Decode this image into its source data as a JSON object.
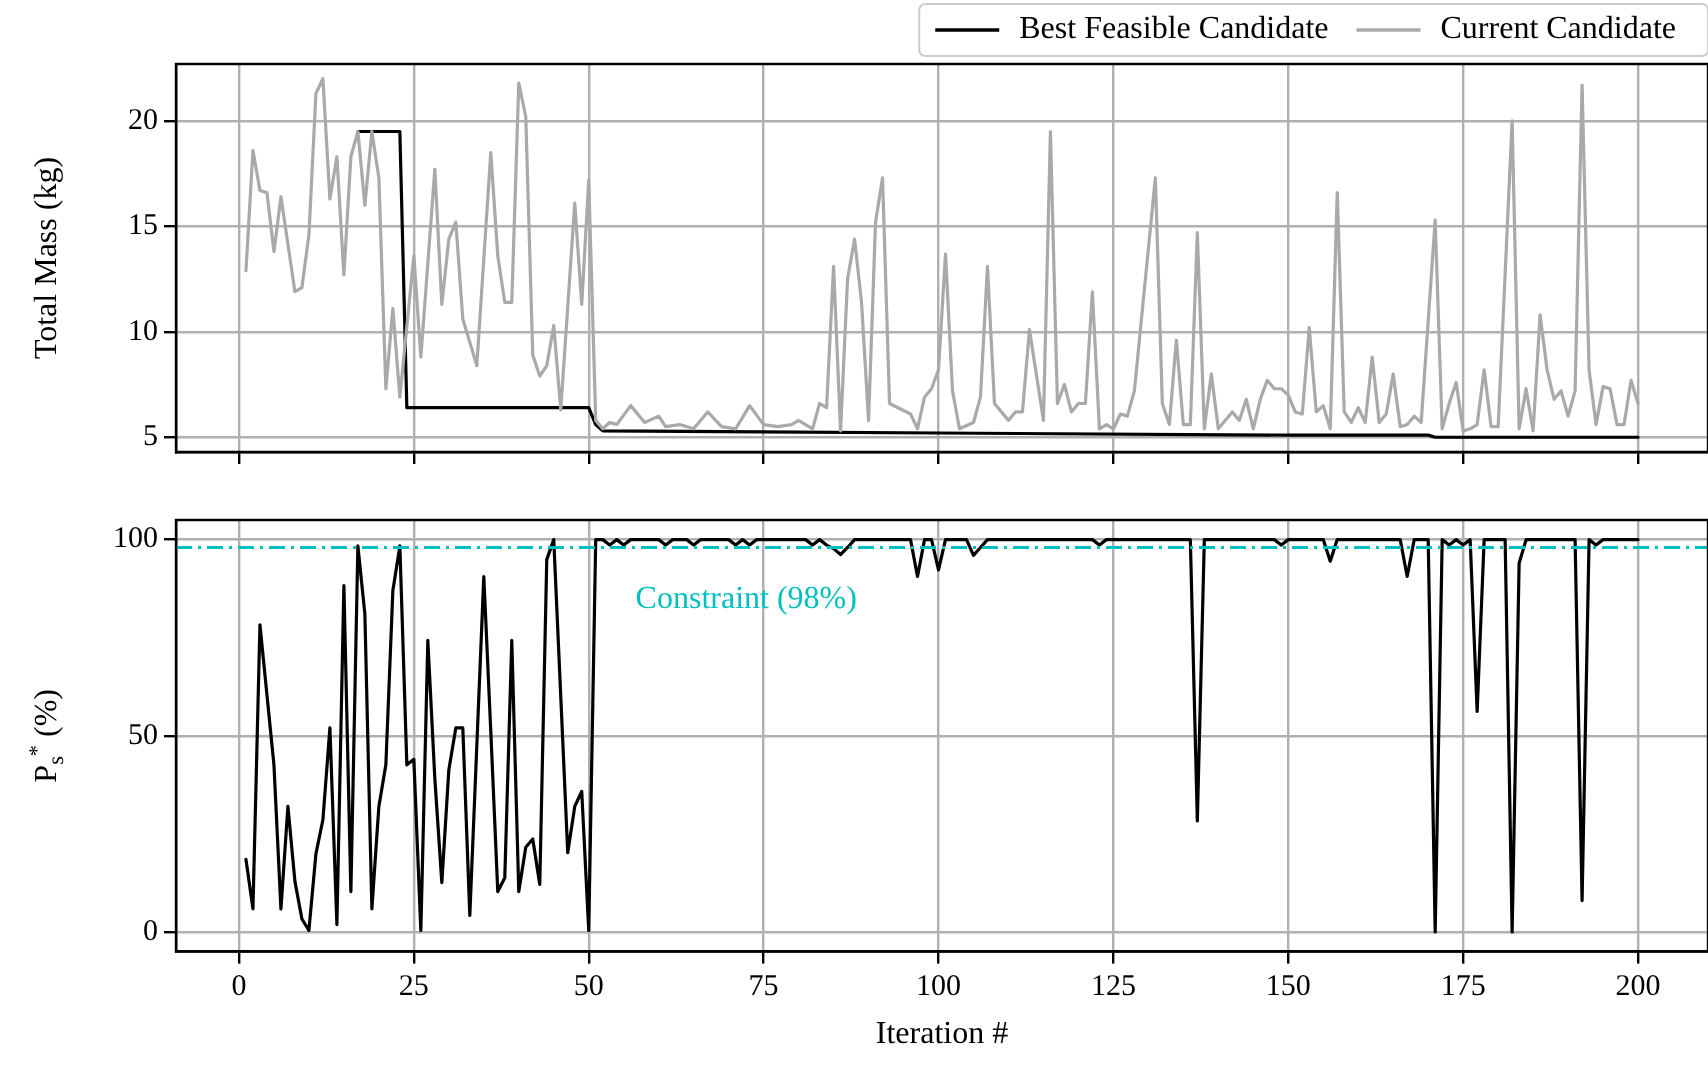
{
  "chart_data": [
    {
      "type": "line",
      "ylabel": "Total Mass (kg)",
      "xlim": [
        -9,
        210
      ],
      "xticks": [
        0,
        25,
        50,
        75,
        100,
        125,
        150,
        175,
        200
      ],
      "ylim": [
        4.3,
        22.7
      ],
      "yticks": [
        5,
        10,
        15,
        20
      ],
      "tick_labels": "y",
      "grid": true,
      "legend": "top right",
      "series": [
        {
          "name": "Best Feasible Candidate",
          "color": "#000000",
          "x": [
            17,
            23,
            24,
            50,
            51,
            52,
            100,
            150,
            170,
            171,
            200
          ],
          "values": [
            19.5,
            19.5,
            6.4,
            6.4,
            5.6,
            5.3,
            5.2,
            5.1,
            5.1,
            5.0,
            5.0
          ]
        },
        {
          "name": "Current Candidate",
          "color": "#a9a9a9",
          "x": [
            1,
            2,
            3,
            4,
            5,
            6,
            8,
            9,
            10,
            11,
            12,
            13,
            14,
            15,
            16,
            17,
            18,
            19,
            20,
            21,
            22,
            23,
            25,
            26,
            28,
            29,
            30,
            31,
            32,
            34,
            36,
            37,
            38,
            39,
            40,
            41,
            42,
            43,
            44,
            45,
            46,
            48,
            49,
            50,
            51,
            52,
            53,
            54,
            56,
            58,
            60,
            61,
            63,
            65,
            67,
            69,
            71,
            73,
            75,
            77,
            79,
            80,
            82,
            83,
            84,
            85,
            86,
            87,
            88,
            89,
            90,
            91,
            92,
            93,
            96,
            97,
            98,
            99,
            100,
            101,
            102,
            103,
            105,
            106,
            107,
            108,
            110,
            111,
            112,
            113,
            115,
            116,
            117,
            118,
            119,
            120,
            121,
            122,
            123,
            124,
            125,
            126,
            127,
            128,
            131,
            132,
            133,
            134,
            135,
            136,
            137,
            138,
            139,
            140,
            142,
            143,
            144,
            145,
            146,
            147,
            148,
            149,
            150,
            151,
            152,
            153,
            154,
            155,
            156,
            157,
            158,
            159,
            160,
            161,
            162,
            163,
            164,
            165,
            166,
            167,
            168,
            169,
            171,
            172,
            173,
            174,
            175,
            176,
            177,
            178,
            179,
            180,
            182,
            183,
            184,
            185,
            186,
            187,
            188,
            189,
            190,
            191,
            192,
            193,
            194,
            195,
            196,
            197,
            198,
            199,
            200
          ],
          "values": [
            12.9,
            18.6,
            16.7,
            16.6,
            13.8,
            16.4,
            11.9,
            12.1,
            14.6,
            21.3,
            22.0,
            16.3,
            18.3,
            12.7,
            18.3,
            19.5,
            16.0,
            19.5,
            17.3,
            7.3,
            11.1,
            6.9,
            13.6,
            8.8,
            17.7,
            11.3,
            14.4,
            15.2,
            10.6,
            8.4,
            18.5,
            13.6,
            11.4,
            11.4,
            21.8,
            20.2,
            8.9,
            7.9,
            8.4,
            10.3,
            6.3,
            16.1,
            11.3,
            17.2,
            5.8,
            5.4,
            5.7,
            5.6,
            6.5,
            5.7,
            6.0,
            5.5,
            5.6,
            5.4,
            6.2,
            5.5,
            5.4,
            6.5,
            5.6,
            5.5,
            5.6,
            5.8,
            5.4,
            6.6,
            6.4,
            13.1,
            5.3,
            12.5,
            14.4,
            11.4,
            5.8,
            15.2,
            17.3,
            6.6,
            6.1,
            5.4,
            6.9,
            7.3,
            8.2,
            13.7,
            7.2,
            5.4,
            5.7,
            6.9,
            13.1,
            6.6,
            5.8,
            6.2,
            6.2,
            10.1,
            5.8,
            19.5,
            6.6,
            7.5,
            6.2,
            6.6,
            6.6,
            11.9,
            5.4,
            5.6,
            5.4,
            6.1,
            6.0,
            7.2,
            17.3,
            6.6,
            5.6,
            9.6,
            5.6,
            5.6,
            14.7,
            5.4,
            8.0,
            5.4,
            6.2,
            5.8,
            6.8,
            5.4,
            6.8,
            7.7,
            7.3,
            7.3,
            7.0,
            6.2,
            6.1,
            10.2,
            6.2,
            6.5,
            5.4,
            16.6,
            6.2,
            5.7,
            6.4,
            5.7,
            8.8,
            5.7,
            6.1,
            8.0,
            5.5,
            5.6,
            6.0,
            5.7,
            15.3,
            5.4,
            6.6,
            7.6,
            5.3,
            5.4,
            5.6,
            8.2,
            5.5,
            5.5,
            20.0,
            5.4,
            7.3,
            5.3,
            10.8,
            8.2,
            6.8,
            7.2,
            6.0,
            7.2,
            21.7,
            8.2,
            5.6,
            7.4,
            7.3,
            5.6,
            5.6,
            7.7,
            6.6
          ]
        }
      ]
    },
    {
      "type": "line",
      "xlabel": "Iteration #",
      "ylabel": "P$_{s}$$^{*}$ (%)",
      "xlim": [
        -9,
        210
      ],
      "xticks": [
        0,
        25,
        50,
        75,
        100,
        125,
        150,
        175,
        200
      ],
      "ylim": [
        -5,
        105
      ],
      "yticks": [
        0,
        50,
        100
      ],
      "grid": true,
      "ref_lines": [
        {
          "axis": "y",
          "value": 98,
          "label": "Constraint (98%)",
          "color": "#00bfbf",
          "line_style": "dashdot"
        }
      ],
      "series": [
        {
          "color": "#000000",
          "x": [
            1,
            2,
            3,
            5,
            6,
            7,
            8,
            9,
            10,
            11,
            12,
            13,
            14,
            15,
            16,
            17,
            18,
            19,
            20,
            21,
            22,
            23,
            24,
            25,
            26,
            27,
            28,
            29,
            30,
            31,
            32,
            33,
            35,
            36,
            37,
            38,
            39,
            40,
            41,
            42,
            43,
            44,
            45,
            47,
            48,
            49,
            50,
            51,
            52,
            53,
            54,
            55,
            56,
            60,
            61,
            62,
            64,
            65,
            66,
            70,
            71,
            72,
            73,
            74,
            81,
            82,
            83,
            84,
            85,
            86,
            87,
            88,
            96,
            97,
            98,
            99,
            100,
            101,
            104,
            105,
            106,
            107,
            122,
            123,
            124,
            136,
            137,
            138,
            148,
            149,
            150,
            155,
            156,
            157,
            166,
            167,
            168,
            170,
            171,
            172,
            173,
            174,
            175,
            176,
            177,
            178,
            181,
            182,
            183,
            184,
            191,
            192,
            193,
            194,
            195,
            200
          ],
          "values": [
            18.5,
            5.9,
            78.3,
            42.6,
            5.9,
            32,
            12.9,
            3.3,
            0.4,
            19.9,
            28.6,
            52,
            1.9,
            88.3,
            10.3,
            98.4,
            81,
            5.9,
            32,
            42.6,
            87,
            98.4,
            42.6,
            44,
            0.4,
            74.3,
            39.1,
            12.6,
            41.3,
            52,
            52,
            4.2,
            90.6,
            51.1,
            10.3,
            13.8,
            74.3,
            10.3,
            21.6,
            23.7,
            12.1,
            94.9,
            100,
            20.2,
            32,
            35.8,
            0.4,
            100,
            100,
            98.6,
            100,
            98.6,
            100,
            100,
            98.6,
            100,
            100,
            98.6,
            100,
            100,
            98.6,
            100,
            98.6,
            100,
            100,
            98.6,
            100,
            98.6,
            97.7,
            96.2,
            98,
            100,
            100,
            90.6,
            100,
            100,
            92.3,
            100,
            100,
            96,
            98,
            100,
            100,
            98.6,
            100,
            100,
            28.3,
            100,
            100,
            98.6,
            100,
            100,
            94.5,
            100,
            100,
            90.6,
            100,
            100,
            0,
            100,
            98.6,
            100,
            98.6,
            100,
            56.2,
            100,
            100,
            0,
            94,
            100,
            100,
            8,
            100,
            98.6,
            100,
            100
          ]
        }
      ]
    }
  ]
}
